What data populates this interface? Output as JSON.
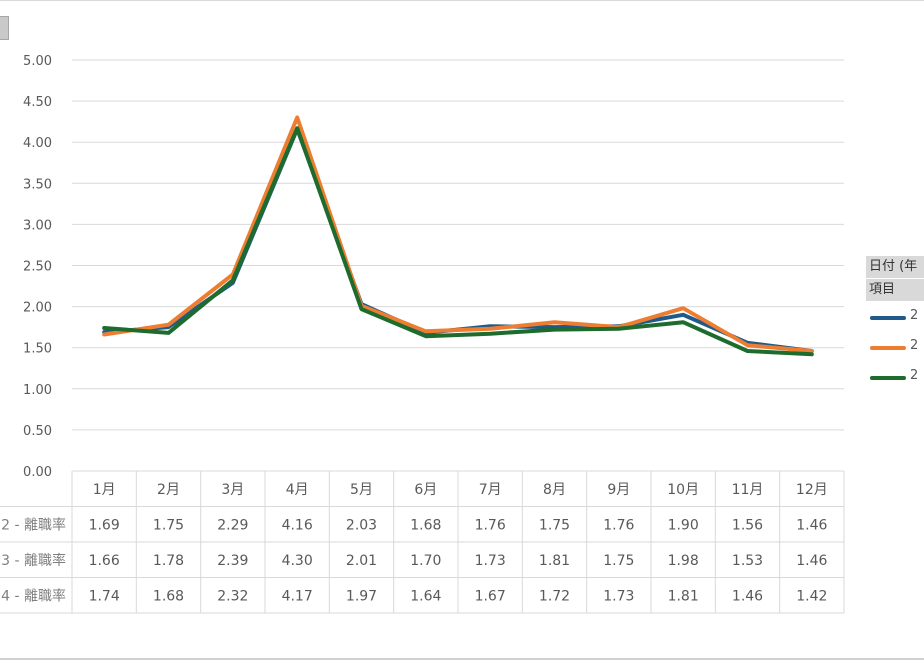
{
  "chart_data": {
    "type": "line",
    "categories": [
      "1月",
      "2月",
      "3月",
      "4月",
      "5月",
      "6月",
      "7月",
      "8月",
      "9月",
      "10月",
      "11月",
      "12月"
    ],
    "ylim": [
      0,
      5
    ],
    "yticks": [
      "0.00",
      "0.50",
      "1.00",
      "1.50",
      "2.00",
      "2.50",
      "3.00",
      "3.50",
      "4.00",
      "4.50",
      "5.00"
    ],
    "grid": true,
    "legend_position": "right",
    "legend_headers": [
      "日付 (年",
      "項目"
    ],
    "series": [
      {
        "label": "2",
        "row_label": "2 - 離職率",
        "color": "#1f5a8a",
        "values": [
          1.69,
          1.75,
          2.29,
          4.16,
          2.03,
          1.68,
          1.76,
          1.75,
          1.76,
          1.9,
          1.56,
          1.46
        ],
        "display": [
          "1.69",
          "1.75",
          "2.29",
          "4.16",
          "2.03",
          "1.68",
          "1.76",
          "1.75",
          "1.76",
          "1.90",
          "1.56",
          "1.46"
        ]
      },
      {
        "label": "2",
        "row_label": "3 - 離職率",
        "color": "#ed7d31",
        "values": [
          1.66,
          1.78,
          2.39,
          4.3,
          2.01,
          1.7,
          1.73,
          1.81,
          1.75,
          1.98,
          1.53,
          1.46
        ],
        "display": [
          "1.66",
          "1.78",
          "2.39",
          "4.30",
          "2.01",
          "1.70",
          "1.73",
          "1.81",
          "1.75",
          "1.98",
          "1.53",
          "1.46"
        ]
      },
      {
        "label": "2",
        "row_label": "4 - 離職率",
        "color": "#1e6b2e",
        "values": [
          1.74,
          1.68,
          2.32,
          4.17,
          1.97,
          1.64,
          1.67,
          1.72,
          1.73,
          1.81,
          1.46,
          1.42
        ],
        "display": [
          "1.74",
          "1.68",
          "2.32",
          "4.17",
          "1.97",
          "1.64",
          "1.67",
          "1.72",
          "1.73",
          "1.81",
          "1.46",
          "1.42"
        ]
      }
    ]
  }
}
